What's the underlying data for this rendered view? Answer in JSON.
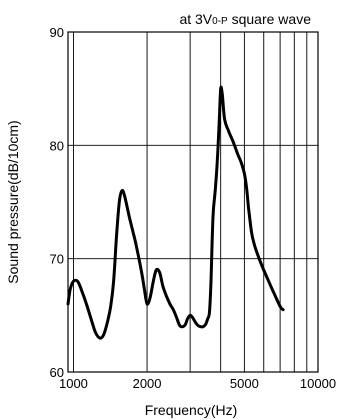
{
  "chart_data": {
    "type": "line",
    "annotation": {
      "prefix": "at 3V",
      "subscript": "0-P",
      "suffix": " square wave"
    },
    "xlabel": "Frequency(Hz)",
    "ylabel": "Sound pressure(dB/10cm)",
    "x_scale": "log",
    "xlim": [
      950,
      10000
    ],
    "ylim": [
      60,
      90
    ],
    "x_ticks": [
      {
        "value": 1000,
        "label": "1000"
      },
      {
        "value": 2000,
        "label": "2000"
      },
      {
        "value": 5000,
        "label": "5000"
      },
      {
        "value": 10000,
        "label": "10000"
      }
    ],
    "y_ticks": [
      {
        "value": 60,
        "label": "60"
      },
      {
        "value": 70,
        "label": "70"
      },
      {
        "value": 80,
        "label": "80"
      },
      {
        "value": 90,
        "label": "90"
      }
    ],
    "x_gridlines": [
      1000,
      2000,
      3000,
      4000,
      5000,
      6000,
      7000,
      8000,
      9000,
      10000
    ],
    "y_gridlines": [
      60,
      70,
      80,
      90
    ],
    "grid": true,
    "series": [
      {
        "x": [
          950,
          970,
          1000,
          1040,
          1080,
          1130,
          1180,
          1230,
          1280,
          1330,
          1380,
          1420,
          1460,
          1500,
          1540,
          1580,
          1620,
          1700,
          1800,
          1900,
          1950,
          2000,
          2060,
          2120,
          2180,
          2250,
          2320,
          2400,
          2480,
          2560,
          2640,
          2720,
          2800,
          2870,
          2930,
          3000,
          3070,
          3150,
          3230,
          3310,
          3390,
          3470,
          3540,
          3600,
          3650,
          3720,
          3800,
          3880,
          3950,
          4000,
          4060,
          4150,
          4300,
          4500,
          4700,
          4850,
          5000,
          5100,
          5200,
          5350,
          5500,
          5700,
          6000,
          6500,
          7000,
          7200
        ],
        "y": [
          66.0,
          67.3,
          68.0,
          68.0,
          67.2,
          66.0,
          64.7,
          63.5,
          63.0,
          63.3,
          64.5,
          65.8,
          68.0,
          72.0,
          75.0,
          76.0,
          75.5,
          73.5,
          71.3,
          68.8,
          67.3,
          66.0,
          66.6,
          68.0,
          69.0,
          68.8,
          67.6,
          66.7,
          66.0,
          65.5,
          64.8,
          64.1,
          64.0,
          64.2,
          64.7,
          65.0,
          64.8,
          64.4,
          64.1,
          64.0,
          64.0,
          64.2,
          64.7,
          65.3,
          68.0,
          73.7,
          76.0,
          78.8,
          82.3,
          85.0,
          84.5,
          82.3,
          81.3,
          80.3,
          79.2,
          78.5,
          77.5,
          76.3,
          74.5,
          72.3,
          71.2,
          70.2,
          69.0,
          67.3,
          65.8,
          65.5
        ]
      }
    ]
  }
}
